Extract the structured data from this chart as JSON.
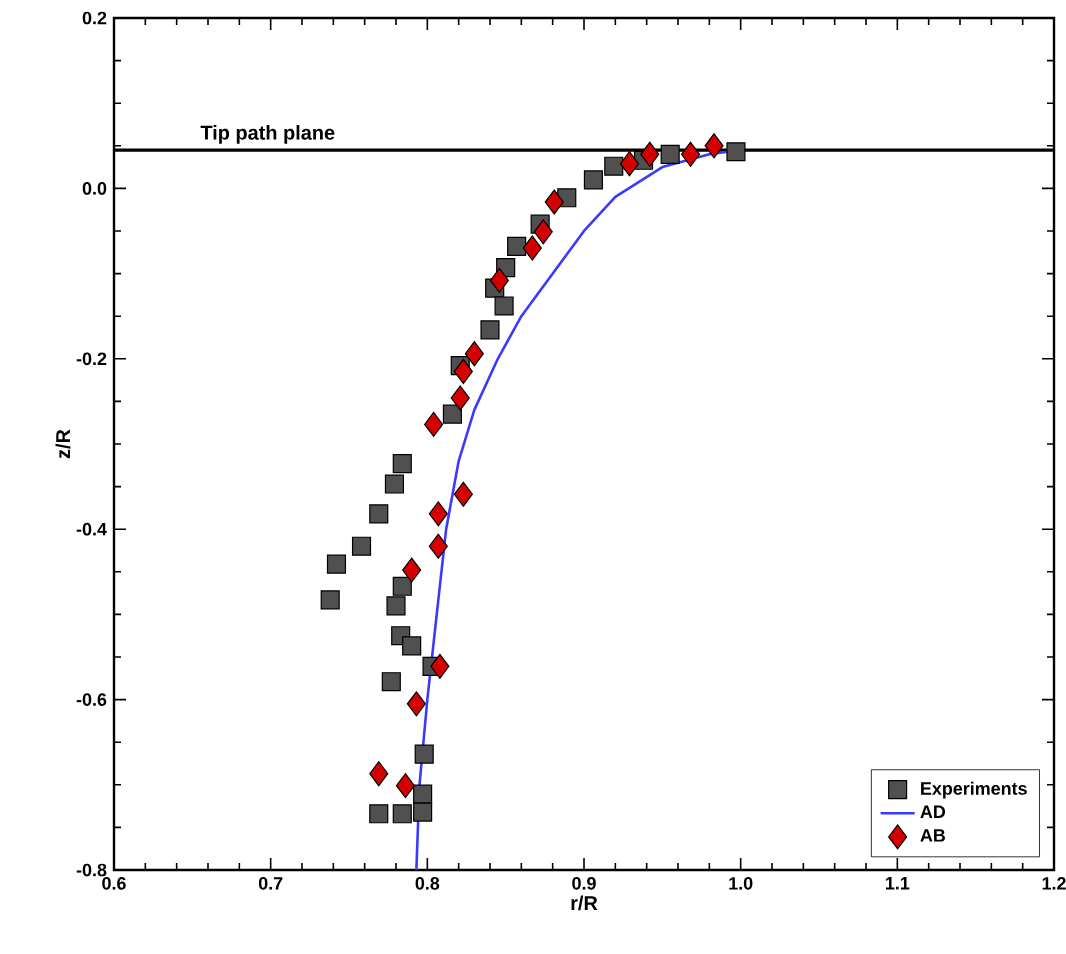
{
  "chart_data": {
    "type": "scatter",
    "xlabel": "r/R",
    "ylabel": "z/R",
    "xlim": [
      0.6,
      1.2
    ],
    "ylim": [
      -0.8,
      0.2
    ],
    "xticks": [
      0.6,
      0.7,
      0.8,
      0.9,
      {
        "value": 1.0,
        "label": "1.0"
      },
      1.1,
      1.2
    ],
    "yticks": [
      -0.8,
      -0.6,
      -0.4,
      -0.2,
      {
        "value": 0.0,
        "label": "0.0"
      },
      0.2
    ],
    "grid": false,
    "legend": "bottom right",
    "ref_lines": [
      {
        "axis": "y",
        "value": 0.045,
        "label": "Tip path plane",
        "color": "#000000"
      }
    ],
    "series": [
      {
        "name": "Experiments",
        "marker": "square",
        "color": "#505050",
        "x": [
          0.997,
          0.955,
          0.938,
          0.919,
          0.906,
          0.889,
          0.872,
          0.857,
          0.85,
          0.843,
          0.849,
          0.84,
          0.821,
          0.816,
          0.784,
          0.779,
          0.769,
          0.758,
          0.742,
          0.738,
          0.784,
          0.78,
          0.783,
          0.79,
          0.777,
          0.803,
          0.798,
          0.797,
          0.797,
          0.784,
          0.769
        ],
        "values": [
          0.043,
          0.04,
          0.033,
          0.026,
          0.01,
          -0.011,
          -0.042,
          -0.068,
          -0.093,
          -0.117,
          -0.138,
          -0.166,
          -0.208,
          -0.265,
          -0.323,
          -0.347,
          -0.382,
          -0.42,
          -0.441,
          -0.483,
          -0.467,
          -0.49,
          -0.525,
          -0.537,
          -0.579,
          -0.561,
          -0.664,
          -0.711,
          -0.732,
          -0.734,
          -0.734
        ]
      },
      {
        "name": "AD",
        "type": "line",
        "marker": "none",
        "line_style": "solid",
        "color": "#3a3aff",
        "x": [
          0.793,
          0.795,
          0.8,
          0.806,
          0.812,
          0.82,
          0.83,
          0.845,
          0.86,
          0.88,
          0.9,
          0.92,
          0.95,
          0.98,
          1.0
        ],
        "values": [
          -0.8,
          -0.7,
          -0.6,
          -0.5,
          -0.4,
          -0.32,
          -0.26,
          -0.2,
          -0.15,
          -0.1,
          -0.05,
          -0.01,
          0.025,
          0.04,
          0.045
        ]
      },
      {
        "name": "AB",
        "marker": "diamond",
        "color": "#d40000",
        "x": [
          0.983,
          0.968,
          0.942,
          0.929,
          0.881,
          0.874,
          0.867,
          0.846,
          0.83,
          0.823,
          0.821,
          0.804,
          0.823,
          0.807,
          0.807,
          0.79,
          0.808,
          0.793,
          0.769,
          0.786
        ],
        "values": [
          0.05,
          0.04,
          0.04,
          0.029,
          -0.016,
          -0.051,
          -0.07,
          -0.108,
          -0.194,
          -0.215,
          -0.246,
          -0.277,
          -0.359,
          -0.382,
          -0.42,
          -0.448,
          -0.561,
          -0.605,
          -0.687,
          -0.701
        ]
      }
    ]
  }
}
